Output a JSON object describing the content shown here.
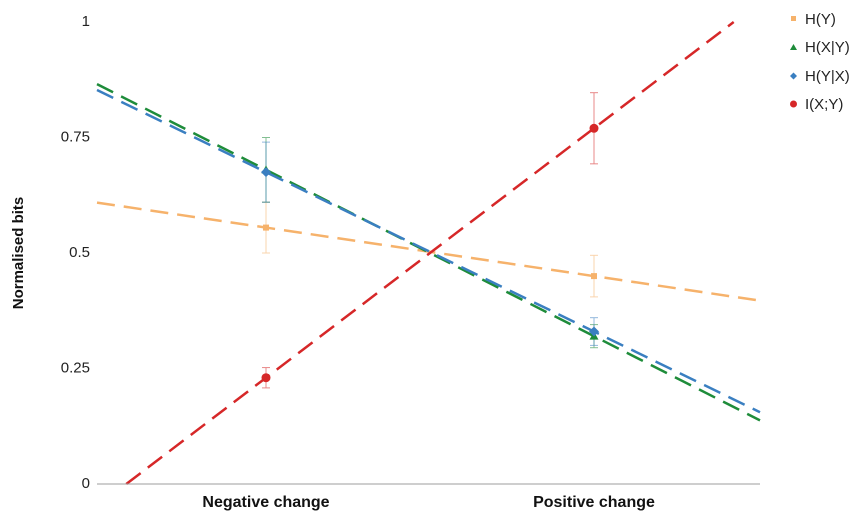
{
  "chart_data": {
    "type": "line",
    "title": "",
    "xlabel": "",
    "ylabel": "Normalised bits",
    "categories": [
      "Negative change",
      "Positive change"
    ],
    "ylim": [
      0,
      1
    ],
    "y_ticks": [
      {
        "value": 0,
        "label": "0"
      },
      {
        "value": 0.25,
        "label": "0.25"
      },
      {
        "value": 0.5,
        "label": "0.5"
      },
      {
        "value": 0.75,
        "label": "0.75"
      },
      {
        "value": 1,
        "label": "1"
      }
    ],
    "grid": false,
    "legend_position": "top-right",
    "series": [
      {
        "name": "H(Y)",
        "color": "#f6b26b",
        "marker": "square",
        "values": [
          0.555,
          0.45
        ],
        "error": [
          0.055,
          0.045
        ]
      },
      {
        "name": "H(X|Y)",
        "color": "#1e8c3a",
        "marker": "triangle",
        "values": [
          0.68,
          0.32
        ],
        "error": [
          0.07,
          0.025
        ]
      },
      {
        "name": "H(Y|X)",
        "color": "#3a7fc1",
        "marker": "diamond",
        "values": [
          0.675,
          0.33
        ],
        "error": [
          0.065,
          0.03
        ]
      },
      {
        "name": "I(X;Y)",
        "color": "#d62728",
        "marker": "circle",
        "values": [
          0.23,
          0.77
        ],
        "error": [
          0.022,
          0.077
        ]
      }
    ]
  }
}
